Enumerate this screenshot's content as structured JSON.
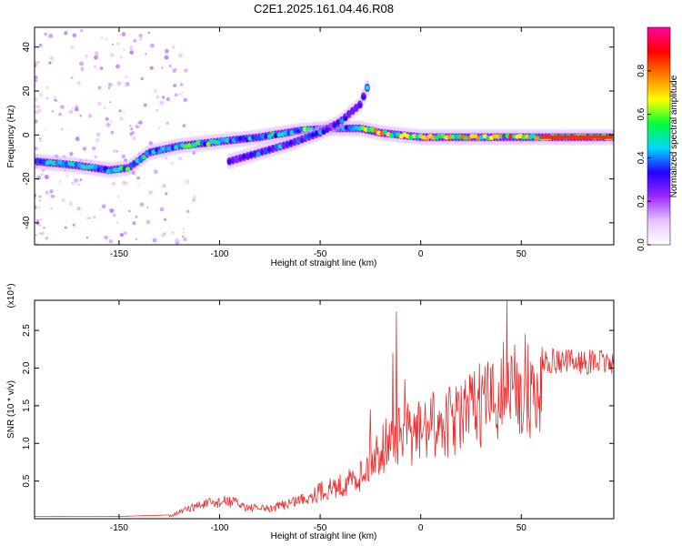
{
  "title": "C2E1.2025.161.04.46.R08",
  "chart_data": [
    {
      "type": "heatmap",
      "xlabel": "Height of straight line (km)",
      "ylabel": "Frequency (Hz)",
      "xlim": [
        -192,
        96
      ],
      "ylim": [
        -50,
        49
      ],
      "x_ticks": [
        -150,
        -100,
        -50,
        0,
        50
      ],
      "y_ticks": [
        -40,
        -20,
        0,
        20,
        40
      ],
      "colorbar": {
        "label": "Normalized spectral amplitude",
        "range": [
          0,
          1
        ],
        "ticks": [
          0.0,
          0.2,
          0.4,
          0.6,
          0.8
        ],
        "tick_labels": [
          "0.0",
          "0.2",
          "0.4",
          "0.6",
          "0.8"
        ],
        "colors": [
          "#ffffff",
          "#e6c2ff",
          "#9b28ff",
          "#2400ff",
          "#00d8ff",
          "#00ff3a",
          "#ffff00",
          "#ff7f00",
          "#ff0000",
          "#ff00a0"
        ]
      },
      "ridges": [
        {
          "name": "lower",
          "points": [
            [
              -192,
              -12
            ],
            [
              -180,
              -13
            ],
            [
              -170,
              -14
            ],
            [
              -155,
              -16
            ],
            [
              -145,
              -15
            ],
            [
              -135,
              -8
            ],
            [
              -120,
              -5
            ],
            [
              -100,
              -3
            ],
            [
              -80,
              -1
            ],
            [
              -60,
              2
            ],
            [
              -45,
              3
            ],
            [
              -30,
              3
            ],
            [
              -20,
              1
            ],
            [
              0,
              -1
            ],
            [
              25,
              -1
            ],
            [
              50,
              -1
            ],
            [
              75,
              -1
            ],
            [
              96,
              -1
            ]
          ]
        },
        {
          "name": "upper",
          "points": [
            [
              -95,
              -12
            ],
            [
              -80,
              -8
            ],
            [
              -65,
              -4
            ],
            [
              -50,
              1
            ],
            [
              -40,
              6
            ],
            [
              -30,
              14
            ],
            [
              -25,
              25
            ]
          ]
        }
      ]
    },
    {
      "type": "line",
      "xlabel": "Height of straight line (km)",
      "ylabel": "SNR (10 * v/v)",
      "scale_note": "(x10⁴)",
      "xlim": [
        -192,
        96
      ],
      "ylim": [
        0,
        2.9
      ],
      "x_ticks": [
        -150,
        -100,
        -50,
        0,
        50
      ],
      "y_ticks": [
        0.5,
        1.0,
        1.5,
        2.0,
        2.5
      ],
      "y_tick_labels": [
        "0.5",
        "1.0",
        "1.5",
        "2.0",
        "2.5"
      ],
      "color": "#ee2b2b",
      "envelope": [
        [
          -192,
          0.03
        ],
        [
          -150,
          0.03
        ],
        [
          -125,
          0.05
        ],
        [
          -110,
          0.25
        ],
        [
          -95,
          0.32
        ],
        [
          -85,
          0.2
        ],
        [
          -75,
          0.18
        ],
        [
          -60,
          0.35
        ],
        [
          -50,
          0.5
        ],
        [
          -40,
          0.6
        ],
        [
          -30,
          0.8
        ],
        [
          -20,
          1.3
        ],
        [
          -10,
          1.5
        ],
        [
          0,
          1.6
        ],
        [
          10,
          1.75
        ],
        [
          20,
          1.85
        ],
        [
          30,
          2.1
        ],
        [
          40,
          2.2
        ],
        [
          45,
          2.4
        ],
        [
          55,
          2.3
        ],
        [
          70,
          2.25
        ],
        [
          80,
          2.25
        ],
        [
          96,
          2.25
        ]
      ],
      "spikes": [
        [
          -12,
          2.75
        ],
        [
          -14,
          2.2
        ],
        [
          43,
          2.9
        ],
        [
          41,
          2.35
        ],
        [
          52,
          2.45
        ],
        [
          -25,
          1.45
        ],
        [
          -8,
          1.85
        ]
      ]
    }
  ]
}
